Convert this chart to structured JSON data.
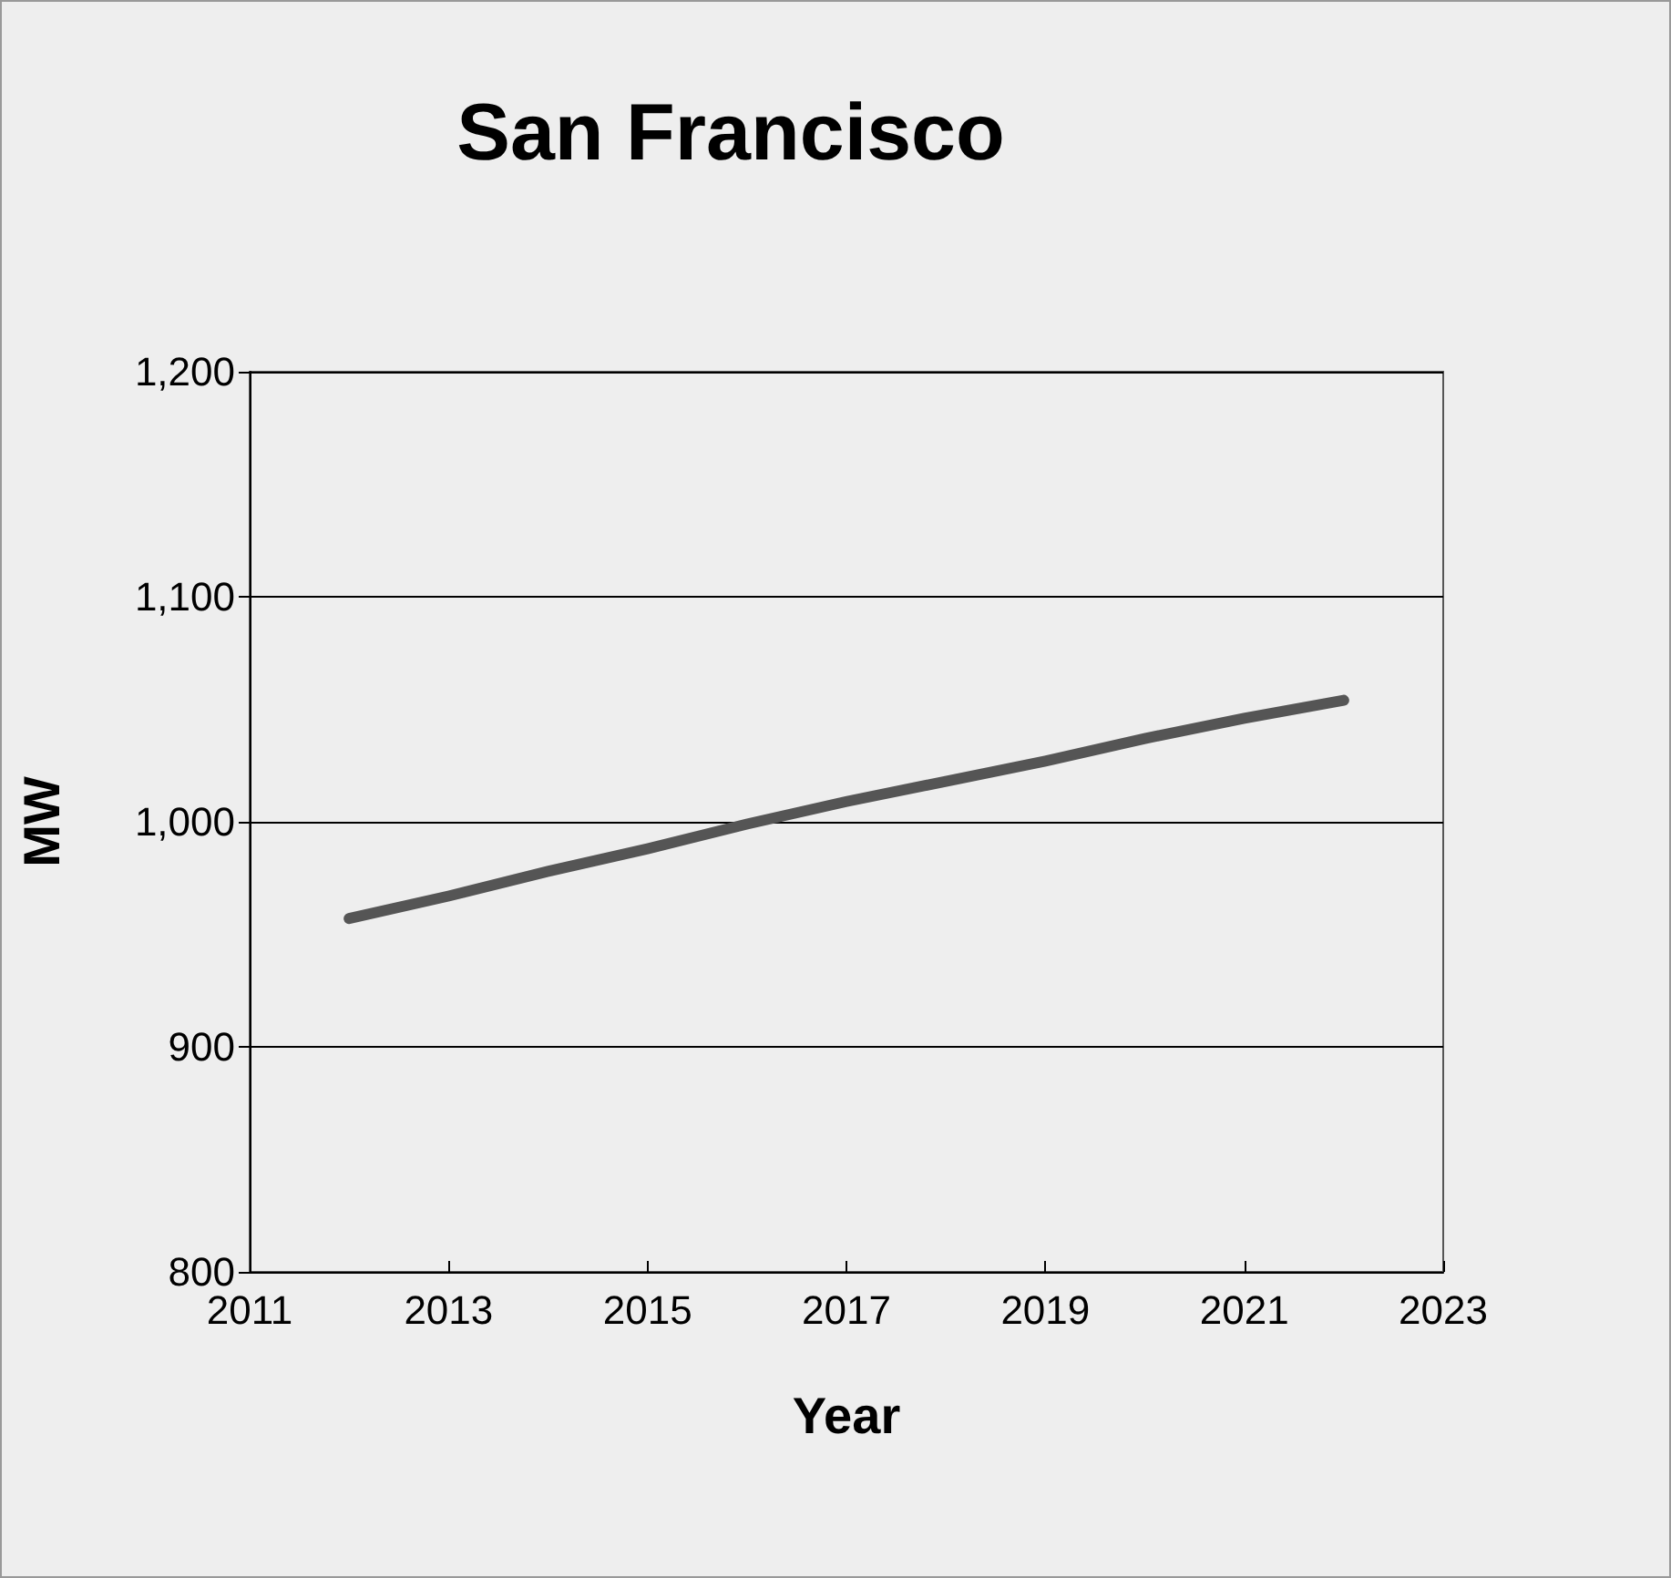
{
  "chart_data": {
    "type": "line",
    "title": "San Francisco",
    "xlabel": "Year",
    "ylabel": "MW",
    "x": [
      2012,
      2013,
      2014,
      2015,
      2016,
      2017,
      2018,
      2019,
      2020,
      2021,
      2022
    ],
    "series": [
      {
        "color": "#555555",
        "values": [
          957,
          967,
          978,
          988,
          999,
          1009,
          1018,
          1027,
          1037,
          1046,
          1054
        ]
      }
    ],
    "xlim": [
      2011,
      2023
    ],
    "xticks": [
      2011,
      2013,
      2015,
      2017,
      2019,
      2021,
      2023
    ],
    "ylim": [
      800,
      1200
    ],
    "yticks": [
      800,
      900,
      {
        "value": 1000,
        "label": "1,000"
      },
      {
        "value": 1100,
        "label": "1,100"
      },
      {
        "value": 1200,
        "label": "1,200"
      }
    ],
    "grid": "y",
    "marker": "none",
    "line_style": "solid"
  }
}
